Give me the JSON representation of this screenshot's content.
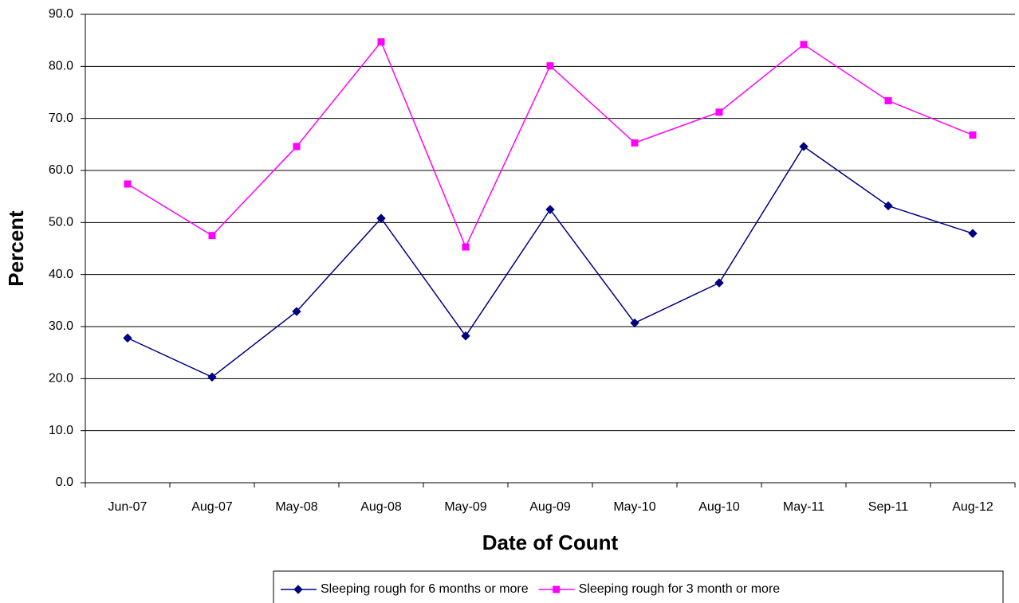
{
  "chart_data": {
    "type": "line",
    "x_label": "Date of Count",
    "y_label": "Percent",
    "categories": [
      "Jun-07",
      "Aug-07",
      "May-08",
      "Aug-08",
      "May-09",
      "Aug-09",
      "May-10",
      "Aug-10",
      "May-11",
      "Sep-11",
      "Aug-12"
    ],
    "series": [
      {
        "name": "Sleeping rough for 6 months or more",
        "color": "#000080",
        "marker": "diamond",
        "values": [
          27.8,
          20.3,
          32.9,
          50.8,
          28.2,
          52.5,
          30.7,
          38.4,
          64.6,
          53.2,
          47.9
        ]
      },
      {
        "name": "Sleeping rough for 3 month or more",
        "color": "#ff00ff",
        "marker": "square",
        "values": [
          57.4,
          47.5,
          64.6,
          84.7,
          45.3,
          80.1,
          65.3,
          71.2,
          84.2,
          73.4,
          66.8
        ]
      }
    ],
    "ylim": [
      0,
      90
    ],
    "yticks": [
      {
        "value": 0,
        "label": "0.0"
      },
      {
        "value": 10,
        "label": "10.0"
      },
      {
        "value": 20,
        "label": "20.0"
      },
      {
        "value": 30,
        "label": "30.0"
      },
      {
        "value": 40,
        "label": "40.0"
      },
      {
        "value": 50,
        "label": "50.0"
      },
      {
        "value": 60,
        "label": "60.0"
      },
      {
        "value": 70,
        "label": "70.0"
      },
      {
        "value": 80,
        "label": "80.0"
      },
      {
        "value": 90,
        "label": "90.0"
      }
    ],
    "grid": true,
    "legend": "bottom"
  }
}
